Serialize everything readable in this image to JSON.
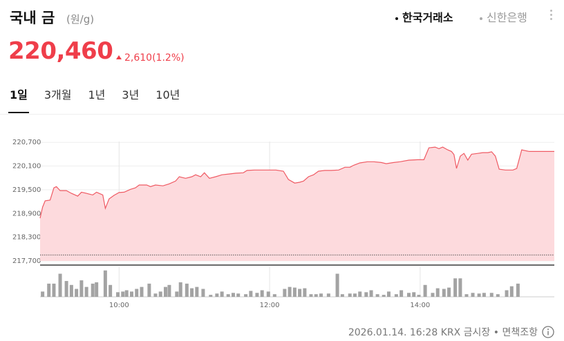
{
  "header": {
    "title": "국내 금",
    "unit": "(원/g)",
    "sources": [
      "한국거래소",
      "신한은행"
    ],
    "active_source": 0
  },
  "quote": {
    "price": "220,460",
    "change": "2,610",
    "change_pct": "(1.2%)"
  },
  "tabs": {
    "items": [
      "1일",
      "3개월",
      "1년",
      "3년",
      "10년"
    ],
    "active": 0
  },
  "chart_data": {
    "type": "area",
    "color": "#ef5a63",
    "fill": "#fddadd",
    "x": [
      "08:57",
      "08:59",
      "09:01",
      "09:05",
      "09:08",
      "09:10",
      "09:13",
      "09:18",
      "09:22",
      "09:27",
      "09:30",
      "09:34",
      "09:39",
      "09:42",
      "09:47",
      "09:49",
      "09:52",
      "09:56",
      "10:00",
      "10:04",
      "10:09",
      "10:13",
      "10:16",
      "10:22",
      "10:25",
      "10:29",
      "10:35",
      "10:40",
      "10:45",
      "10:48",
      "10:53",
      "10:58",
      "11:01",
      "11:05",
      "11:08",
      "11:12",
      "11:17",
      "11:22",
      "11:28",
      "11:33",
      "11:39",
      "11:42",
      "11:48",
      "11:54",
      "12:00",
      "12:05",
      "12:11",
      "12:15",
      "12:20",
      "12:24",
      "12:27",
      "12:31",
      "12:35",
      "12:39",
      "12:44",
      "12:49",
      "12:55",
      "13:00",
      "13:04",
      "13:07",
      "13:12",
      "13:18",
      "13:23",
      "13:29",
      "13:33",
      "13:39",
      "13:44",
      "13:51",
      "13:58",
      "14:03",
      "14:07",
      "14:12",
      "14:15",
      "14:18",
      "14:22",
      "14:25",
      "14:27",
      "14:29",
      "14:32",
      "14:35",
      "14:38",
      "14:41",
      "14:46",
      "14:50",
      "14:54",
      "14:57",
      "15:00",
      "15:03",
      "15:08",
      "15:14",
      "15:17",
      "15:21",
      "15:27",
      "15:34",
      "15:47"
    ],
    "values": [
      218780,
      219060,
      219220,
      219240,
      219550,
      219580,
      219480,
      219480,
      219410,
      219340,
      219440,
      219410,
      219370,
      219440,
      219370,
      219030,
      219270,
      219360,
      219430,
      219440,
      219510,
      219550,
      219620,
      219620,
      219580,
      219620,
      219600,
      219650,
      219720,
      219830,
      219790,
      219830,
      219880,
      219830,
      219930,
      219790,
      219830,
      219880,
      219900,
      219920,
      219930,
      219990,
      220000,
      220000,
      220000,
      220000,
      219970,
      219760,
      219670,
      219690,
      219720,
      219830,
      219880,
      219970,
      219990,
      219990,
      220000,
      220070,
      220070,
      220120,
      220180,
      220210,
      220210,
      220190,
      220160,
      220190,
      220210,
      220250,
      220260,
      220260,
      220560,
      220580,
      220540,
      220580,
      220510,
      220470,
      220390,
      220040,
      220350,
      220420,
      220250,
      220400,
      220420,
      220440,
      220440,
      220460,
      220350,
      220020,
      220000,
      220000,
      220040,
      220510,
      220470,
      220470,
      220470
    ],
    "xlim": [
      "08:57",
      "15:47"
    ],
    "xticks": [
      "10:00",
      "12:00",
      "14:00"
    ],
    "ylim": [
      217700,
      221070
    ],
    "yticks": [
      {
        "value": 217700,
        "label": "217,700"
      },
      {
        "value": 218300,
        "label": "218,300"
      },
      {
        "value": 218900,
        "label": "218,900"
      },
      {
        "value": 219500,
        "label": "219,500"
      },
      {
        "value": 220100,
        "label": "220,100"
      },
      {
        "value": 220700,
        "label": "220,700"
      }
    ],
    "grid": true,
    "reference_line": 217850,
    "volume": {
      "color": "#a3a3a3",
      "vlim": [
        0,
        45
      ],
      "x": [
        "08:59",
        "09:04",
        "09:08",
        "09:13",
        "09:18",
        "09:22",
        "09:26",
        "09:30",
        "09:34",
        "09:39",
        "09:42",
        "09:49",
        "09:53",
        "09:59",
        "10:03",
        "10:06",
        "10:10",
        "10:14",
        "10:18",
        "10:24",
        "10:29",
        "10:33",
        "10:37",
        "10:40",
        "10:46",
        "10:49",
        "10:54",
        "10:58",
        "11:02",
        "11:07",
        "11:13",
        "11:18",
        "11:22",
        "11:27",
        "11:31",
        "11:35",
        "11:41",
        "11:45",
        "11:50",
        "11:54",
        "11:59",
        "12:04",
        "12:12",
        "12:16",
        "12:20",
        "12:24",
        "12:28",
        "12:33",
        "12:37",
        "12:41",
        "12:47",
        "12:54",
        "12:58",
        "13:04",
        "13:08",
        "13:12",
        "13:17",
        "13:21",
        "13:26",
        "13:31",
        "13:35",
        "13:41",
        "13:45",
        "13:51",
        "13:55",
        "13:59",
        "14:04",
        "14:10",
        "14:14",
        "14:19",
        "14:23",
        "14:28",
        "14:32",
        "14:37",
        "14:42",
        "14:47",
        "14:51",
        "14:57",
        "15:02",
        "15:09",
        "15:13",
        "15:18"
      ],
      "values": [
        8,
        20,
        20,
        35,
        24,
        18,
        12,
        25,
        15,
        20,
        22,
        40,
        18,
        7,
        8,
        10,
        8,
        12,
        15,
        20,
        5,
        8,
        15,
        18,
        8,
        22,
        20,
        13,
        15,
        12,
        3,
        5,
        8,
        4,
        6,
        5,
        4,
        9,
        6,
        10,
        8,
        4,
        12,
        15,
        14,
        12,
        13,
        4,
        4,
        5,
        5,
        35,
        4,
        5,
        5,
        8,
        7,
        10,
        4,
        3,
        8,
        4,
        10,
        6,
        7,
        3,
        18,
        6,
        13,
        12,
        14,
        28,
        28,
        4,
        6,
        5,
        6,
        6,
        4,
        10,
        16,
        20
      ]
    }
  },
  "footer": {
    "timestamp": "2026.01.14. 16:28 KRX 금시장",
    "disclaimer": "면책조항"
  }
}
